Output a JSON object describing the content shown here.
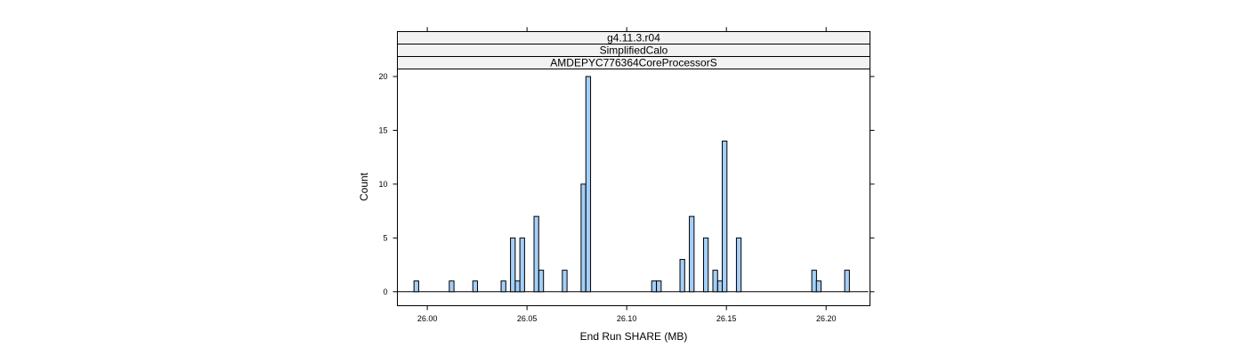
{
  "chart_data": {
    "type": "bar",
    "strips": [
      "g4.11.3.r04",
      "SimplifiedCalo",
      "AMDEPYC776364CoreProcessorS"
    ],
    "xlabel": "End Run SHARE (MB)",
    "ylabel": "Count",
    "xlim": [
      25.985,
      26.222
    ],
    "ylim": [
      -1.3,
      20.7
    ],
    "xticks": [
      "26.00",
      "26.05",
      "26.10",
      "26.15",
      "26.20"
    ],
    "xtick_values": [
      26.0,
      26.05,
      26.1,
      26.15,
      26.2
    ],
    "yticks": [
      "0",
      "5",
      "10",
      "15",
      "20"
    ],
    "ytick_values": [
      0,
      5,
      10,
      15,
      20
    ],
    "bin_width": 0.002361,
    "bin_range": [
      25.9851,
      26.2212
    ],
    "bars": [
      {
        "x": 25.9945,
        "count": 1
      },
      {
        "x": 26.0122,
        "count": 1
      },
      {
        "x": 26.024,
        "count": 1
      },
      {
        "x": 26.0382,
        "count": 1
      },
      {
        "x": 26.0429,
        "count": 5
      },
      {
        "x": 26.0453,
        "count": 1
      },
      {
        "x": 26.0476,
        "count": 5
      },
      {
        "x": 26.0547,
        "count": 7
      },
      {
        "x": 26.0571,
        "count": 2
      },
      {
        "x": 26.0689,
        "count": 2
      },
      {
        "x": 26.0783,
        "count": 10
      },
      {
        "x": 26.0807,
        "count": 20
      },
      {
        "x": 26.1137,
        "count": 1
      },
      {
        "x": 26.1161,
        "count": 1
      },
      {
        "x": 26.1279,
        "count": 3
      },
      {
        "x": 26.1326,
        "count": 7
      },
      {
        "x": 26.1397,
        "count": 5
      },
      {
        "x": 26.1444,
        "count": 2
      },
      {
        "x": 26.1468,
        "count": 1
      },
      {
        "x": 26.1491,
        "count": 14
      },
      {
        "x": 26.1562,
        "count": 5
      },
      {
        "x": 26.194,
        "count": 2
      },
      {
        "x": 26.1963,
        "count": 1
      },
      {
        "x": 26.2105,
        "count": 2
      }
    ],
    "bar_fill": "#a3cff8",
    "grid": false
  }
}
